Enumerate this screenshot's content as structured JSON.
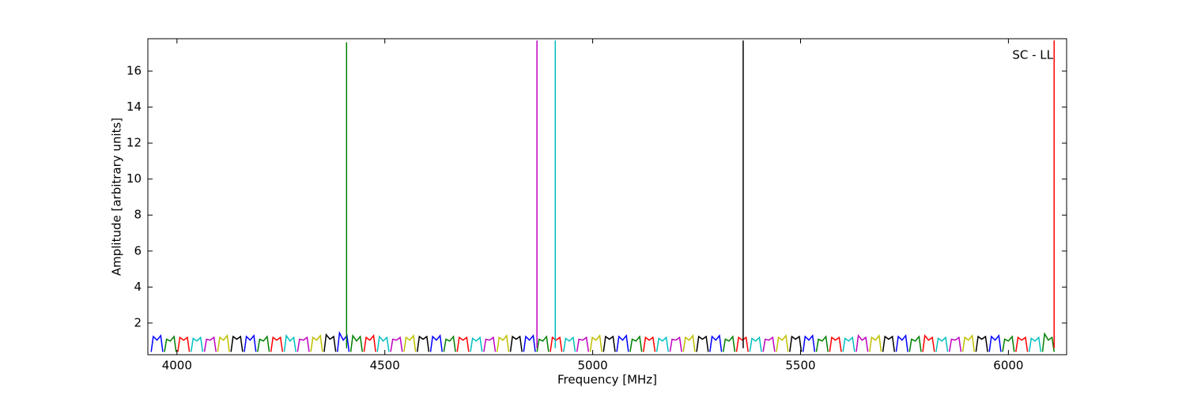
{
  "chart_data": {
    "type": "line",
    "annotation": "SC - LL",
    "xlabel": "Frequency [MHz]",
    "ylabel": "Amplitude [arbitrary units]",
    "xlim": [
      3930,
      6140
    ],
    "ylim": [
      0.24,
      17.8
    ],
    "xticks": [
      4000,
      4500,
      5000,
      5500,
      6000
    ],
    "yticks": [
      2,
      4,
      6,
      8,
      10,
      12,
      14,
      16
    ],
    "series": [
      {
        "color": "#0000ff",
        "x": [
          3938,
          3943,
          3952,
          3961,
          3966
        ],
        "values": [
          0.4,
          1.25,
          1.05,
          1.3,
          0.4
        ]
      },
      {
        "color": "#008000",
        "x": [
          3970,
          3975,
          3984,
          3993,
          3998
        ],
        "values": [
          0.4,
          1.1,
          1.0,
          1.25,
          0.4
        ]
      },
      {
        "color": "#ff0000",
        "x": [
          4002,
          4007,
          4016,
          4025,
          4030
        ],
        "values": [
          0.4,
          1.2,
          1.05,
          1.2,
          0.4
        ]
      },
      {
        "color": "#00bfbf",
        "x": [
          4034,
          4039,
          4048,
          4057,
          4062
        ],
        "values": [
          0.4,
          1.15,
          1.0,
          1.2,
          0.4
        ]
      },
      {
        "color": "#bf00bf",
        "x": [
          4066,
          4071,
          4080,
          4089,
          4094
        ],
        "values": [
          0.4,
          1.1,
          1.05,
          1.2,
          0.4
        ]
      },
      {
        "color": "#bfbf00",
        "x": [
          4098,
          4103,
          4112,
          4121,
          4126
        ],
        "values": [
          0.4,
          1.2,
          1.05,
          1.3,
          0.4
        ]
      },
      {
        "color": "#000000",
        "x": [
          4130,
          4135,
          4144,
          4153,
          4158
        ],
        "values": [
          0.4,
          1.25,
          1.1,
          1.25,
          0.4
        ]
      },
      {
        "color": "#0000ff",
        "x": [
          4162,
          4167,
          4176,
          4185,
          4190
        ],
        "values": [
          0.4,
          1.25,
          1.05,
          1.3,
          0.4
        ]
      },
      {
        "color": "#008000",
        "x": [
          4194,
          4199,
          4208,
          4217,
          4222
        ],
        "values": [
          0.4,
          1.1,
          1.0,
          1.25,
          0.4
        ]
      },
      {
        "color": "#ff0000",
        "x": [
          4226,
          4231,
          4240,
          4249,
          4254
        ],
        "values": [
          0.4,
          1.2,
          1.05,
          1.2,
          0.4
        ]
      },
      {
        "color": "#00bfbf",
        "x": [
          4258,
          4263,
          4272,
          4281,
          4286
        ],
        "values": [
          0.4,
          1.3,
          1.0,
          1.2,
          0.4
        ]
      },
      {
        "color": "#bf00bf",
        "x": [
          4290,
          4295,
          4304,
          4313,
          4318
        ],
        "values": [
          0.4,
          1.1,
          1.05,
          1.2,
          0.4
        ]
      },
      {
        "color": "#bfbf00",
        "x": [
          4322,
          4327,
          4336,
          4345,
          4350
        ],
        "values": [
          0.4,
          1.2,
          1.05,
          1.3,
          0.4
        ]
      },
      {
        "color": "#000000",
        "x": [
          4354,
          4359,
          4368,
          4377,
          4382
        ],
        "values": [
          0.4,
          1.35,
          1.1,
          1.25,
          0.4
        ]
      },
      {
        "color": "#0000ff",
        "x": [
          4386,
          4391,
          4400,
          4409,
          4414
        ],
        "values": [
          0.4,
          1.45,
          1.05,
          1.3,
          0.4
        ]
      },
      {
        "color": "#008000",
        "x": [
          4418,
          4423,
          4432,
          4441,
          4446
        ],
        "values": [
          0.4,
          1.3,
          1.0,
          1.25,
          0.4
        ]
      },
      {
        "color": "#ff0000",
        "x": [
          4450,
          4455,
          4464,
          4473,
          4478
        ],
        "values": [
          0.4,
          1.2,
          1.05,
          1.3,
          0.4
        ]
      },
      {
        "color": "#00bfbf",
        "x": [
          4482,
          4487,
          4496,
          4505,
          4510
        ],
        "values": [
          0.4,
          1.25,
          1.0,
          1.2,
          0.4
        ]
      },
      {
        "color": "#bf00bf",
        "x": [
          4514,
          4519,
          4528,
          4537,
          4542
        ],
        "values": [
          0.4,
          1.1,
          1.05,
          1.2,
          0.4
        ]
      },
      {
        "color": "#bfbf00",
        "x": [
          4546,
          4551,
          4560,
          4569,
          4574
        ],
        "values": [
          0.4,
          1.2,
          1.05,
          1.3,
          0.4
        ]
      },
      {
        "color": "#000000",
        "x": [
          4578,
          4583,
          4592,
          4601,
          4606
        ],
        "values": [
          0.4,
          1.25,
          1.1,
          1.25,
          0.4
        ]
      },
      {
        "color": "#0000ff",
        "x": [
          4610,
          4615,
          4624,
          4633,
          4638
        ],
        "values": [
          0.4,
          1.25,
          1.05,
          1.3,
          0.4
        ]
      },
      {
        "color": "#008000",
        "x": [
          4642,
          4647,
          4656,
          4665,
          4670
        ],
        "values": [
          0.4,
          1.1,
          1.0,
          1.25,
          0.4
        ]
      },
      {
        "color": "#ff0000",
        "x": [
          4674,
          4679,
          4688,
          4697,
          4702
        ],
        "values": [
          0.4,
          1.2,
          1.05,
          1.2,
          0.4
        ]
      },
      {
        "color": "#00bfbf",
        "x": [
          4706,
          4711,
          4720,
          4729,
          4734
        ],
        "values": [
          0.4,
          1.15,
          1.0,
          1.2,
          0.4
        ]
      },
      {
        "color": "#bf00bf",
        "x": [
          4738,
          4743,
          4752,
          4761,
          4766
        ],
        "values": [
          0.4,
          1.1,
          1.05,
          1.2,
          0.4
        ]
      },
      {
        "color": "#bfbf00",
        "x": [
          4770,
          4775,
          4784,
          4793,
          4798
        ],
        "values": [
          0.4,
          1.2,
          1.05,
          1.3,
          0.4
        ]
      },
      {
        "color": "#000000",
        "x": [
          4802,
          4807,
          4816,
          4825,
          4830
        ],
        "values": [
          0.4,
          1.25,
          1.1,
          1.25,
          0.4
        ]
      },
      {
        "color": "#0000ff",
        "x": [
          4834,
          4839,
          4848,
          4857,
          4862
        ],
        "values": [
          0.4,
          1.25,
          1.05,
          1.3,
          0.4
        ]
      },
      {
        "color": "#008000",
        "x": [
          4866,
          4871,
          4880,
          4889,
          4894
        ],
        "values": [
          0.4,
          1.1,
          1.0,
          1.25,
          0.4
        ]
      },
      {
        "color": "#ff0000",
        "x": [
          4898,
          4903,
          4912,
          4921,
          4926
        ],
        "values": [
          0.4,
          1.2,
          1.05,
          1.2,
          0.4
        ]
      },
      {
        "color": "#00bfbf",
        "x": [
          4930,
          4935,
          4944,
          4953,
          4958
        ],
        "values": [
          0.4,
          1.15,
          1.0,
          1.2,
          0.4
        ]
      },
      {
        "color": "#bf00bf",
        "x": [
          4962,
          4967,
          4976,
          4985,
          4990
        ],
        "values": [
          0.4,
          1.1,
          1.05,
          1.2,
          0.4
        ]
      },
      {
        "color": "#bfbf00",
        "x": [
          4994,
          4999,
          5008,
          5017,
          5022
        ],
        "values": [
          0.4,
          1.2,
          1.05,
          1.3,
          0.4
        ]
      },
      {
        "color": "#000000",
        "x": [
          5026,
          5031,
          5040,
          5049,
          5054
        ],
        "values": [
          0.4,
          1.25,
          1.1,
          1.25,
          0.4
        ]
      },
      {
        "color": "#0000ff",
        "x": [
          5058,
          5063,
          5072,
          5081,
          5086
        ],
        "values": [
          0.4,
          1.25,
          1.05,
          1.3,
          0.4
        ]
      },
      {
        "color": "#008000",
        "x": [
          5090,
          5095,
          5104,
          5113,
          5118
        ],
        "values": [
          0.4,
          1.1,
          1.0,
          1.25,
          0.4
        ]
      },
      {
        "color": "#ff0000",
        "x": [
          5122,
          5127,
          5136,
          5145,
          5150
        ],
        "values": [
          0.4,
          1.2,
          1.05,
          1.2,
          0.4
        ]
      },
      {
        "color": "#00bfbf",
        "x": [
          5154,
          5159,
          5168,
          5177,
          5182
        ],
        "values": [
          0.4,
          1.15,
          1.0,
          1.2,
          0.4
        ]
      },
      {
        "color": "#bf00bf",
        "x": [
          5186,
          5191,
          5200,
          5209,
          5214
        ],
        "values": [
          0.4,
          1.1,
          1.05,
          1.2,
          0.4
        ]
      },
      {
        "color": "#bfbf00",
        "x": [
          5218,
          5223,
          5232,
          5241,
          5246
        ],
        "values": [
          0.4,
          1.2,
          1.05,
          1.3,
          0.4
        ]
      },
      {
        "color": "#000000",
        "x": [
          5250,
          5255,
          5264,
          5273,
          5278
        ],
        "values": [
          0.4,
          1.25,
          1.1,
          1.25,
          0.4
        ]
      },
      {
        "color": "#0000ff",
        "x": [
          5282,
          5287,
          5296,
          5305,
          5310
        ],
        "values": [
          0.4,
          1.25,
          1.05,
          1.3,
          0.4
        ]
      },
      {
        "color": "#008000",
        "x": [
          5314,
          5319,
          5328,
          5337,
          5342
        ],
        "values": [
          0.4,
          1.1,
          1.0,
          1.25,
          0.4
        ]
      },
      {
        "color": "#ff0000",
        "x": [
          5346,
          5351,
          5360,
          5369,
          5374
        ],
        "values": [
          0.4,
          1.2,
          1.05,
          1.2,
          0.4
        ]
      },
      {
        "color": "#00bfbf",
        "x": [
          5378,
          5383,
          5392,
          5401,
          5406
        ],
        "values": [
          0.4,
          1.15,
          1.0,
          1.2,
          0.4
        ]
      },
      {
        "color": "#bf00bf",
        "x": [
          5410,
          5415,
          5424,
          5433,
          5438
        ],
        "values": [
          0.4,
          1.1,
          1.05,
          1.2,
          0.4
        ]
      },
      {
        "color": "#bfbf00",
        "x": [
          5442,
          5447,
          5456,
          5465,
          5470
        ],
        "values": [
          0.4,
          1.2,
          1.05,
          1.3,
          0.4
        ]
      },
      {
        "color": "#000000",
        "x": [
          5474,
          5479,
          5488,
          5497,
          5502
        ],
        "values": [
          0.4,
          1.25,
          1.1,
          1.25,
          0.4
        ]
      },
      {
        "color": "#0000ff",
        "x": [
          5506,
          5511,
          5520,
          5529,
          5534
        ],
        "values": [
          0.4,
          1.25,
          1.05,
          1.3,
          0.4
        ]
      },
      {
        "color": "#008000",
        "x": [
          5538,
          5543,
          5552,
          5561,
          5566
        ],
        "values": [
          0.4,
          1.1,
          1.0,
          1.25,
          0.4
        ]
      },
      {
        "color": "#ff0000",
        "x": [
          5570,
          5575,
          5584,
          5593,
          5598
        ],
        "values": [
          0.4,
          1.2,
          1.05,
          1.2,
          0.4
        ]
      },
      {
        "color": "#00bfbf",
        "x": [
          5602,
          5607,
          5616,
          5625,
          5630
        ],
        "values": [
          0.4,
          1.15,
          1.0,
          1.2,
          0.4
        ]
      },
      {
        "color": "#bf00bf",
        "x": [
          5634,
          5639,
          5648,
          5657,
          5662
        ],
        "values": [
          0.4,
          1.3,
          1.05,
          1.2,
          0.4
        ]
      },
      {
        "color": "#bfbf00",
        "x": [
          5666,
          5671,
          5680,
          5689,
          5694
        ],
        "values": [
          0.4,
          1.2,
          1.05,
          1.3,
          0.4
        ]
      },
      {
        "color": "#000000",
        "x": [
          5698,
          5703,
          5712,
          5721,
          5726
        ],
        "values": [
          0.4,
          1.25,
          1.1,
          1.25,
          0.4
        ]
      },
      {
        "color": "#0000ff",
        "x": [
          5730,
          5735,
          5744,
          5753,
          5758
        ],
        "values": [
          0.4,
          1.25,
          1.05,
          1.3,
          0.4
        ]
      },
      {
        "color": "#008000",
        "x": [
          5762,
          5767,
          5776,
          5785,
          5790
        ],
        "values": [
          0.4,
          1.1,
          1.0,
          1.25,
          0.4
        ]
      },
      {
        "color": "#ff0000",
        "x": [
          5794,
          5799,
          5808,
          5817,
          5822
        ],
        "values": [
          0.4,
          1.3,
          1.05,
          1.2,
          0.4
        ]
      },
      {
        "color": "#00bfbf",
        "x": [
          5826,
          5831,
          5840,
          5849,
          5854
        ],
        "values": [
          0.4,
          1.15,
          1.0,
          1.2,
          0.4
        ]
      },
      {
        "color": "#bf00bf",
        "x": [
          5858,
          5863,
          5872,
          5881,
          5886
        ],
        "values": [
          0.4,
          1.1,
          1.05,
          1.2,
          0.4
        ]
      },
      {
        "color": "#bfbf00",
        "x": [
          5890,
          5895,
          5904,
          5913,
          5918
        ],
        "values": [
          0.4,
          1.2,
          1.05,
          1.3,
          0.4
        ]
      },
      {
        "color": "#000000",
        "x": [
          5922,
          5927,
          5936,
          5945,
          5950
        ],
        "values": [
          0.4,
          1.25,
          1.1,
          1.25,
          0.4
        ]
      },
      {
        "color": "#0000ff",
        "x": [
          5954,
          5959,
          5968,
          5977,
          5982
        ],
        "values": [
          0.4,
          1.25,
          1.05,
          1.3,
          0.4
        ]
      },
      {
        "color": "#008000",
        "x": [
          5986,
          5991,
          6000,
          6009,
          6014
        ],
        "values": [
          0.4,
          1.1,
          1.0,
          1.25,
          0.4
        ]
      },
      {
        "color": "#ff0000",
        "x": [
          6018,
          6023,
          6032,
          6041,
          6046
        ],
        "values": [
          0.4,
          1.2,
          1.05,
          1.2,
          0.4
        ]
      },
      {
        "color": "#00bfbf",
        "x": [
          6050,
          6055,
          6064,
          6073,
          6078
        ],
        "values": [
          0.4,
          1.15,
          1.0,
          1.2,
          0.4
        ]
      },
      {
        "color": "#008000",
        "x": [
          6082,
          6087,
          6096,
          6105,
          6110
        ],
        "values": [
          0.4,
          1.4,
          1.05,
          1.2,
          0.4
        ]
      },
      {
        "color": "#008000",
        "x": [
          4408,
          4408
        ],
        "values": [
          0.6,
          17.6
        ]
      },
      {
        "color": "#bf00bf",
        "x": [
          4866,
          4866
        ],
        "values": [
          0.6,
          17.7
        ]
      },
      {
        "color": "#00bfbf",
        "x": [
          4910,
          4910
        ],
        "values": [
          0.6,
          17.7
        ]
      },
      {
        "color": "#000000",
        "x": [
          5362,
          5362
        ],
        "values": [
          0.6,
          17.7
        ]
      },
      {
        "color": "#ff0000",
        "x": [
          6110,
          6110
        ],
        "values": [
          0.6,
          17.7
        ]
      }
    ]
  }
}
